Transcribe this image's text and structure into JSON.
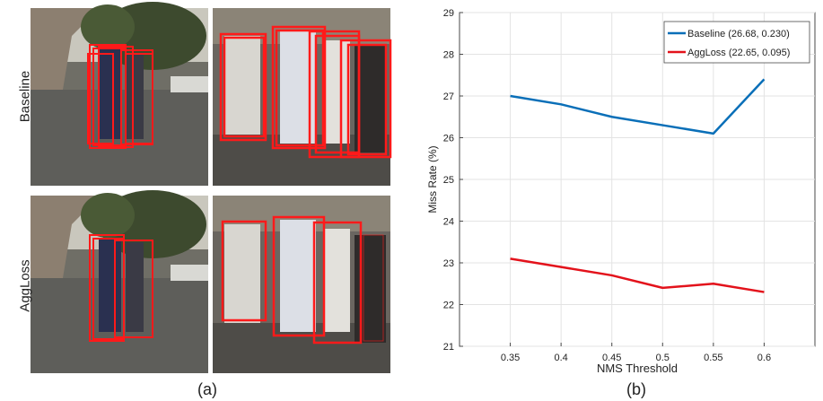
{
  "panel_a": {
    "row_labels": [
      "Baseline",
      "AggLoss"
    ],
    "caption": "(a)",
    "colors": {
      "box": "#ff1a1a",
      "sky": "#c9c7bd",
      "tree": "#3d4a2e",
      "road": "#5e5e5a",
      "building": "#8c7f70"
    }
  },
  "panel_b": {
    "caption": "(b)"
  },
  "chart_data": {
    "type": "line",
    "title": "",
    "xlabel": "NMS Threshold",
    "ylabel": "Miss Rate (%)",
    "x": [
      0.35,
      0.4,
      0.45,
      0.5,
      0.55,
      0.6
    ],
    "x_tick_labels": [
      "0.35",
      "0.4",
      "0.45",
      "0.5",
      "0.55",
      "0.6"
    ],
    "xlim": [
      0.3,
      0.65
    ],
    "ylim": [
      21,
      29
    ],
    "y_ticks": [
      21,
      22,
      23,
      24,
      25,
      26,
      27,
      28,
      29
    ],
    "grid": true,
    "legend_position": "top-right",
    "series": [
      {
        "name": "Baseline (26.68, 0.230)",
        "color": "#0a6fb8",
        "values": [
          27.0,
          26.8,
          26.5,
          26.3,
          26.1,
          27.4
        ]
      },
      {
        "name": "AggLoss (22.65, 0.095)",
        "color": "#e3121b",
        "values": [
          23.1,
          22.9,
          22.7,
          22.4,
          22.5,
          22.3
        ]
      }
    ]
  }
}
